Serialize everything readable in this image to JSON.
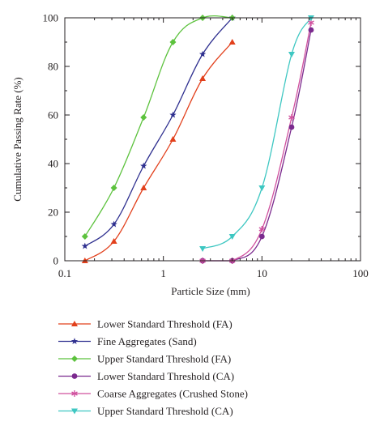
{
  "chart_data": {
    "type": "scatter",
    "xlabel": "Particle Size (mm)",
    "ylabel": "Cumulative Passing Rate (%)",
    "xscale": "log",
    "xlim": [
      0.1,
      100
    ],
    "ylim": [
      0,
      100
    ],
    "xticks": [
      0.1,
      1,
      10,
      100
    ],
    "xtick_labels": [
      "0.1",
      "1",
      "10",
      "100"
    ],
    "yticks": [
      0,
      20,
      40,
      60,
      80,
      100
    ],
    "ytick_labels": [
      "0",
      "20",
      "40",
      "60",
      "80",
      "100"
    ],
    "grid": false,
    "legend_position": "below",
    "series": [
      {
        "name": "Lower Standard Threshold (FA)",
        "color": "#e2401c",
        "marker": "triangle-up",
        "x": [
          0.16,
          0.315,
          0.63,
          1.25,
          2.5,
          5
        ],
        "y": [
          0,
          8,
          30,
          50,
          75,
          90
        ]
      },
      {
        "name": "Fine Aggregates (Sand)",
        "color": "#2e2f8f",
        "marker": "star",
        "x": [
          0.16,
          0.315,
          0.63,
          1.25,
          2.5,
          5
        ],
        "y": [
          6,
          15,
          39,
          60,
          85,
          100
        ]
      },
      {
        "name": "Upper Standard Threshold (FA)",
        "color": "#5cc23d",
        "marker": "diamond",
        "x": [
          0.16,
          0.315,
          0.63,
          1.25,
          2.5,
          5
        ],
        "y": [
          10,
          30,
          59,
          90,
          100,
          100
        ]
      },
      {
        "name": "Lower Standard Threshold (CA)",
        "color": "#7b2a8e",
        "marker": "circle",
        "x": [
          2.5,
          5,
          10,
          20,
          31.5
        ],
        "y": [
          0,
          0,
          10,
          55,
          95
        ]
      },
      {
        "name": "Coarse Aggregates (Crushed Stone)",
        "color": "#d0509e",
        "marker": "asterisk",
        "x": [
          2.5,
          5,
          10,
          20,
          31.5
        ],
        "y": [
          0,
          0,
          13,
          59,
          98
        ]
      },
      {
        "name": "Upper Standard Threshold (CA)",
        "color": "#3ec7c2",
        "marker": "triangle-down",
        "x": [
          2.5,
          5,
          10,
          20,
          31.5
        ],
        "y": [
          5,
          10,
          30,
          85,
          100
        ]
      }
    ]
  }
}
